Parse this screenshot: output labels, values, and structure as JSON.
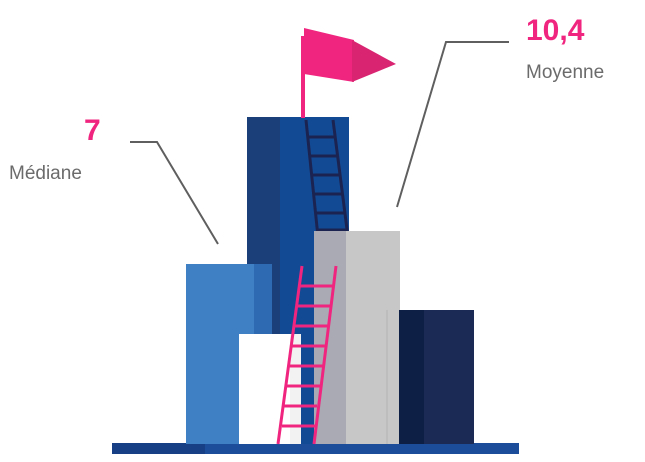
{
  "stats": {
    "median": {
      "value": "7",
      "label": "Médiane"
    },
    "mean": {
      "value": "10,4",
      "label": "Moyenne"
    }
  },
  "colors": {
    "accent": "#f0257f",
    "label_text": "#6b6b6b",
    "callout_line": "#5f5f5f",
    "ground": "#1c4d9b"
  }
}
